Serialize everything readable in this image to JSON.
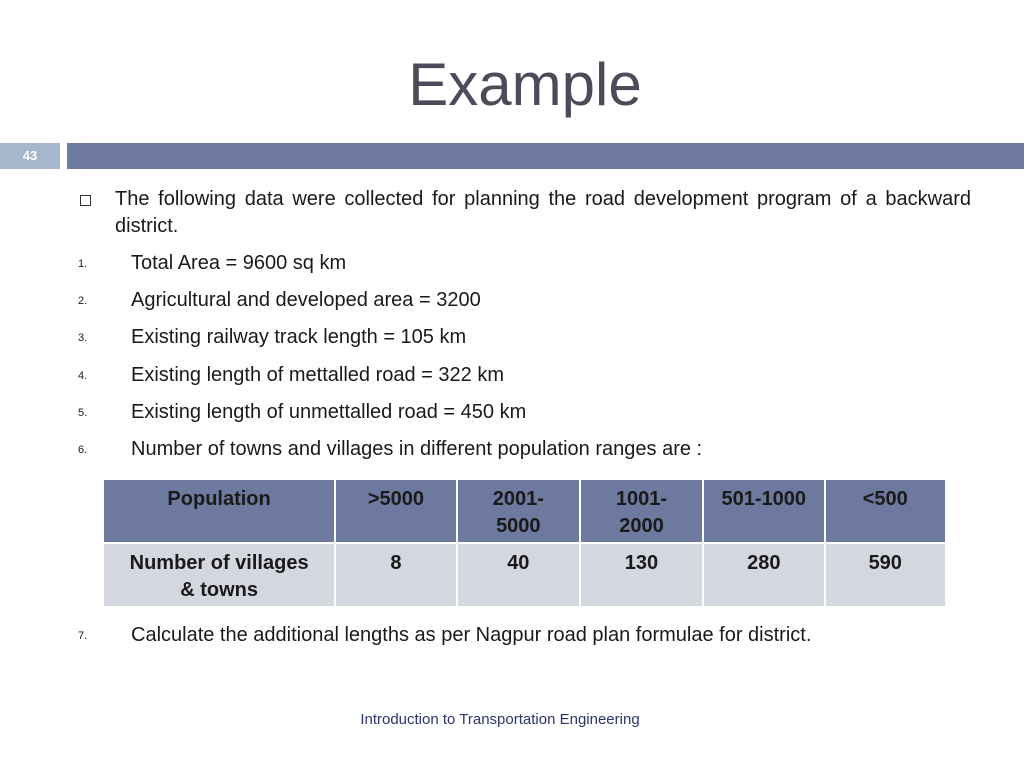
{
  "title": "Example",
  "slide_number": "43",
  "intro": "The following data were collected for planning the road development program of a backward district.",
  "items": [
    {
      "n": "1.",
      "text": "Total Area = 9600 sq km"
    },
    {
      "n": "2.",
      "text": "Agricultural and developed area = 3200"
    },
    {
      "n": "3.",
      "text": "Existing railway track length = 105 km"
    },
    {
      "n": "4.",
      "text": "Existing length of mettalled road = 322 km"
    },
    {
      "n": "5.",
      "text": "Existing length of unmettalled road = 450 km"
    },
    {
      "n": "6.",
      "text": "Number of towns and villages in different population ranges are :"
    },
    {
      "n": "7.",
      "text": "Calculate the additional lengths as per Nagpur road plan formulae for district."
    }
  ],
  "table": {
    "header": [
      "Population",
      ">5000",
      "2001-5000",
      "1001-2000",
      "501-1000",
      "<500"
    ],
    "row": [
      "Number of villages & towns",
      "8",
      "40",
      "130",
      "280",
      "590"
    ]
  },
  "footer": "Introduction to Transportation Engineering",
  "colors": {
    "bar": "#6e799f",
    "number_box": "#a6b6cc",
    "row": "#d5d7e0"
  }
}
